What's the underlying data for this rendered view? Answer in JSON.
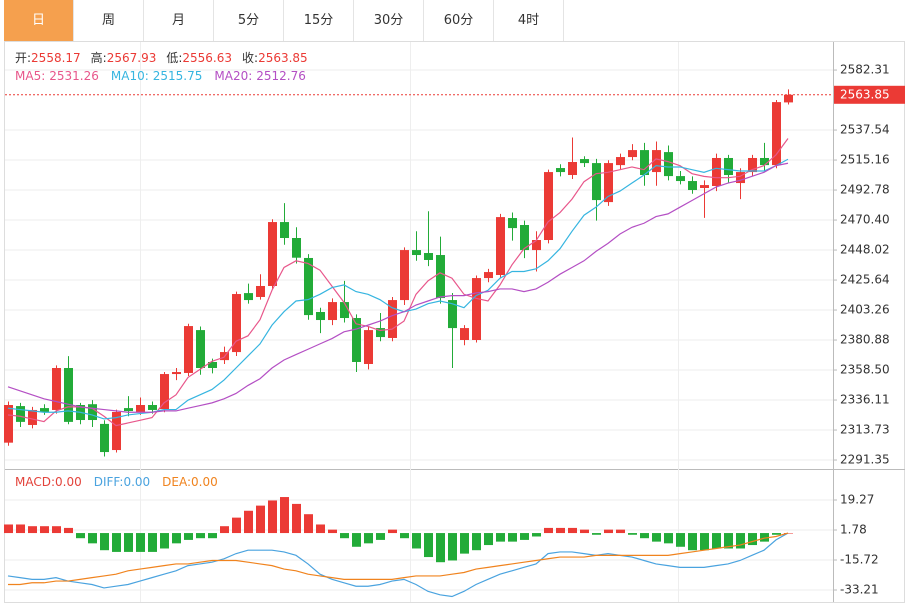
{
  "tabs": [
    "日",
    "周",
    "月",
    "5分",
    "15分",
    "30分",
    "60分",
    "4时"
  ],
  "active_tab": 0,
  "chart_data": [
    {
      "type": "candlestick",
      "up_color": "#eb3a35",
      "down_color": "#22ab38",
      "grid": true,
      "ohlc_legend": [
        {
          "label": "开:",
          "value": 2558.17
        },
        {
          "label": "高:",
          "value": 2567.93
        },
        {
          "label": "低:",
          "value": 2556.63
        },
        {
          "label": "收:",
          "value": 2563.85
        }
      ],
      "open": [
        2304.3,
        2331.6,
        2317.5,
        2330.1,
        2328.7,
        2360.0,
        2332.4,
        2333.0,
        2318.3,
        2298.8,
        2330.1,
        2327.2,
        2332.4,
        2329.4,
        2355.5,
        2356.3,
        2388.3,
        2364.5,
        2365.9,
        2371.9,
        2415.9,
        2413.0,
        2421.2,
        2468.9,
        2457.0,
        2442.1,
        2401.8,
        2395.8,
        2409.2,
        2397.3,
        2363.0,
        2389.8,
        2382.4,
        2410.7,
        2448.0,
        2445.8,
        2444.3,
        2410.7,
        2380.9,
        2380.9,
        2427.1,
        2429.4,
        2471.9,
        2466.7,
        2448.0,
        2455.5,
        2509.2,
        2504.0,
        2515.9,
        2512.9,
        2483.8,
        2511.4,
        2517.4,
        2522.6,
        2506.2,
        2521.1,
        2503.2,
        2499.5,
        2494.3,
        2495.8,
        2516.7,
        2498.0,
        2506.2,
        2516.7,
        2511.4,
        2558.17
      ],
      "high": [
        2335,
        2334,
        2331,
        2333,
        2362,
        2368.9,
        2334,
        2336,
        2321,
        2329,
        2339,
        2338,
        2335,
        2357,
        2360,
        2393,
        2391,
        2367,
        2376,
        2417,
        2423,
        2430,
        2471,
        2483,
        2465,
        2445,
        2405,
        2412,
        2425,
        2400,
        2391,
        2401,
        2413,
        2450,
        2462,
        2477,
        2458,
        2416,
        2392,
        2429,
        2434,
        2475,
        2476,
        2470,
        2462,
        2508,
        2512,
        2532,
        2518,
        2516,
        2515,
        2520,
        2527,
        2528,
        2529,
        2526,
        2507,
        2503,
        2500,
        2520,
        2519,
        2509,
        2519,
        2528,
        2560,
        2567.93
      ],
      "low": [
        2302,
        2316,
        2315,
        2325,
        2326,
        2318,
        2318,
        2316,
        2294,
        2297,
        2324,
        2325,
        2326,
        2327,
        2351,
        2354,
        2355,
        2356,
        2363,
        2369,
        2408,
        2411,
        2419,
        2452,
        2438,
        2396,
        2386,
        2392,
        2394,
        2357,
        2359,
        2380,
        2380,
        2407,
        2440,
        2436,
        2408,
        2360,
        2377,
        2379,
        2424,
        2427,
        2455,
        2442,
        2432,
        2453,
        2503,
        2501,
        2510,
        2470,
        2481,
        2508,
        2515,
        2496,
        2496,
        2500,
        2497,
        2490,
        2472,
        2492,
        2498,
        2486,
        2503,
        2507,
        2509,
        2556.63
      ],
      "close": [
        2332.4,
        2319.8,
        2328.7,
        2327.2,
        2360.0,
        2319.8,
        2321.2,
        2321.2,
        2297.3,
        2327.2,
        2327.9,
        2332.4,
        2328.7,
        2355.5,
        2357.0,
        2391.3,
        2360.0,
        2360.0,
        2371.9,
        2415.2,
        2410.7,
        2421.2,
        2468.9,
        2457.0,
        2442.3,
        2399.5,
        2395.8,
        2409.2,
        2397.3,
        2364.5,
        2388.3,
        2383.1,
        2410.7,
        2448.0,
        2444.3,
        2440.6,
        2412.2,
        2389.8,
        2389.8,
        2427.1,
        2431.6,
        2472.6,
        2464.4,
        2448.0,
        2455.5,
        2506.2,
        2506.2,
        2513.7,
        2512.9,
        2485.3,
        2512.9,
        2517.4,
        2522.6,
        2504.0,
        2522.6,
        2503.2,
        2499.5,
        2492.8,
        2496.5,
        2516.7,
        2504.0,
        2506.2,
        2516.7,
        2511.4,
        2558.4,
        2563.85
      ],
      "series": [
        {
          "name": "MA5:",
          "color": "#e8578b",
          "legend_value": 2531.26,
          "values": [
            2325,
            2324,
            2322,
            2320,
            2328,
            2331,
            2331,
            2330,
            2324,
            2317,
            2319,
            2321,
            2323,
            2334,
            2340,
            2353,
            2359,
            2365,
            2368,
            2380,
            2384,
            2396,
            2418,
            2435,
            2440,
            2438,
            2433,
            2421,
            2409,
            2393,
            2391,
            2388,
            2389,
            2395,
            2415,
            2425,
            2431,
            2427,
            2415,
            2412,
            2410,
            2422,
            2437,
            2449,
            2455,
            2469,
            2476,
            2486,
            2499,
            2505,
            2506,
            2508,
            2510,
            2508,
            2516,
            2514,
            2511,
            2505,
            2503,
            2502,
            2502,
            2503,
            2508,
            2511,
            2519,
            2531.26
          ]
        },
        {
          "name": "MA10:",
          "color": "#36b5e0",
          "legend_value": 2515.75,
          "values": [
            2330,
            2329,
            2328,
            2327,
            2327,
            2328,
            2327,
            2325,
            2322,
            2323,
            2325,
            2326,
            2327,
            2329,
            2329,
            2336,
            2340,
            2344,
            2351,
            2360,
            2369,
            2378,
            2392,
            2402,
            2410,
            2411,
            2415,
            2420,
            2422,
            2417,
            2415,
            2411,
            2405,
            2402,
            2404,
            2408,
            2410,
            2408,
            2405,
            2414,
            2418,
            2427,
            2432,
            2432,
            2434,
            2440,
            2449,
            2462,
            2474,
            2480,
            2488,
            2492,
            2498,
            2504,
            2511,
            2510,
            2510,
            2508,
            2506,
            2509,
            2508,
            2507,
            2507,
            2507,
            2511,
            2515.75
          ]
        },
        {
          "name": "MA20:",
          "color": "#b44fc4",
          "legend_value": 2512.76,
          "values": [
            2346,
            2343,
            2340,
            2337,
            2335,
            2333,
            2331,
            2330,
            2329,
            2328,
            2327,
            2327,
            2327,
            2328,
            2328,
            2330,
            2332,
            2334,
            2337,
            2341,
            2347,
            2352,
            2360,
            2366,
            2370,
            2374,
            2378,
            2382,
            2387,
            2389,
            2392,
            2395,
            2399,
            2402,
            2407,
            2410,
            2413,
            2414,
            2414,
            2416,
            2417,
            2419,
            2419,
            2417,
            2419,
            2424,
            2430,
            2435,
            2440,
            2447,
            2453,
            2460,
            2465,
            2468,
            2473,
            2475,
            2480,
            2485,
            2490,
            2495,
            2498,
            2500,
            2503,
            2506,
            2511,
            2512.76
          ]
        }
      ],
      "ylim": [
        2285.4,
        2601.0
      ],
      "yticks": [
        2291.35,
        2313.73,
        2336.11,
        {
          "value": 2358.5,
          "label": "2358.50"
        },
        2380.88,
        2403.26,
        2425.64,
        2448.02,
        {
          "value": 2470.4,
          "label": "2470.40"
        },
        2492.78,
        2515.16,
        2537.54,
        2582.31
      ]
    },
    {
      "type": "macd",
      "up_color": "#eb3a35",
      "down_color": "#22ab38",
      "grid": true,
      "histogram": {
        "name": "MACD:",
        "color": "#e3433b",
        "legend_value": {
          "value": 0,
          "label": "0.00"
        },
        "values": [
          5,
          5,
          4,
          4,
          4,
          3,
          -3,
          -6,
          -10,
          -11,
          -11,
          -11,
          -11,
          -9,
          -6,
          -4,
          -3,
          -3,
          4,
          9,
          13,
          16,
          19,
          21,
          17,
          11,
          5,
          2,
          -3,
          -8,
          -6,
          -4,
          2,
          -3,
          -9,
          -14,
          -17,
          -16,
          -12,
          -10,
          -7,
          -5,
          -5,
          -4,
          -2,
          3,
          3,
          3,
          2,
          -1,
          2,
          2,
          -1,
          -3,
          -5,
          -6,
          -8,
          -10,
          -10,
          -9,
          -9,
          -9,
          -7,
          -5,
          -1,
          0
        ]
      },
      "series": [
        {
          "name": "DIFF:",
          "color": "#4aa3df",
          "legend_value": {
            "value": 0,
            "label": "0.00"
          },
          "values": [
            -25,
            -26,
            -27,
            -27,
            -26,
            -28,
            -29,
            -30,
            -32,
            -31,
            -30,
            -28,
            -26,
            -24,
            -22,
            -19,
            -18,
            -17,
            -15,
            -12,
            -10,
            -10,
            -10,
            -11,
            -13,
            -18,
            -24,
            -27,
            -29,
            -31,
            -31,
            -30,
            -28,
            -27,
            -30,
            -34,
            -36,
            -37,
            -34,
            -30,
            -27,
            -24,
            -22,
            -20,
            -18,
            -12,
            -11,
            -11,
            -12,
            -13,
            -12,
            -13,
            -14,
            -16,
            -18,
            -19,
            -20,
            -20,
            -20,
            -19,
            -18,
            -16,
            -13,
            -10,
            -4,
            0
          ]
        },
        {
          "name": "DEA:",
          "color": "#f0831e",
          "legend_value": {
            "value": 0,
            "label": "0.00"
          },
          "values": [
            -30,
            -30,
            -29,
            -29,
            -28,
            -28,
            -27,
            -26,
            -25,
            -24,
            -22,
            -21,
            -20,
            -19,
            -18,
            -18,
            -17,
            -16,
            -16,
            -16,
            -17,
            -18,
            -19,
            -21,
            -22,
            -24,
            -25,
            -26,
            -27,
            -27,
            -27,
            -27,
            -27,
            -26,
            -25,
            -25,
            -25,
            -24,
            -23,
            -21,
            -20,
            -19,
            -18,
            -17,
            -16,
            -15,
            -14,
            -14,
            -14,
            -13,
            -13,
            -13,
            -13,
            -13,
            -13,
            -13,
            -12,
            -11,
            -10,
            -9,
            -8,
            -7,
            -5,
            -3,
            -2,
            0
          ]
        }
      ],
      "ylim": [
        -39.04,
        36.77
      ],
      "yticks": [
        19.27,
        1.78,
        -15.72,
        -33.21
      ]
    }
  ]
}
